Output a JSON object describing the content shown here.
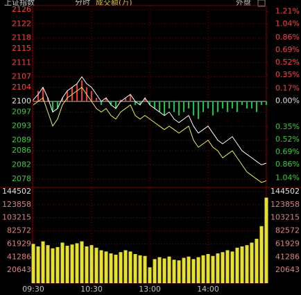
{
  "chart_data": {
    "type": "intraday",
    "header": [
      "上证指数",
      "分时",
      "成交额(万)"
    ],
    "header_right": "外盘",
    "x": [
      0,
      5,
      10,
      15,
      20,
      25,
      30,
      35,
      40,
      45,
      50,
      55,
      60,
      65,
      70,
      75,
      80,
      85,
      90,
      95,
      100,
      105,
      110,
      115,
      120,
      125,
      130,
      135,
      140,
      145,
      150,
      155,
      160,
      165,
      170,
      175,
      180,
      185,
      190,
      195,
      200,
      205,
      210,
      215,
      220,
      225,
      230,
      235,
      240
    ],
    "xlim": [
      0,
      240
    ],
    "xticks": [
      {
        "value": 0,
        "label": "09:30"
      },
      {
        "value": 60,
        "label": "10:30"
      },
      {
        "value": 120,
        "label": "13:00"
      },
      {
        "value": 180,
        "label": "14:00"
      }
    ],
    "ylim": [
      2076,
      2127.2
    ],
    "yticks": [
      2126,
      2122,
      2118,
      2115,
      2111,
      2107,
      2104,
      2100,
      2097,
      2093,
      2089,
      2086,
      2082,
      2078
    ],
    "y2lim": [
      -1.15,
      1.29
    ],
    "y2ticks": [
      {
        "value": 1.21,
        "label": "1.21%"
      },
      {
        "value": 1.04,
        "label": "1.04%"
      },
      {
        "value": 0.86,
        "label": "0.86%"
      },
      {
        "value": 0.69,
        "label": "0.69%"
      },
      {
        "value": 0.52,
        "label": "0.52%"
      },
      {
        "value": 0.35,
        "label": "0.35%"
      },
      {
        "value": 0.17,
        "label": "0.17%"
      },
      {
        "value": 0,
        "label": "0.00%"
      },
      {
        "value": -0.35,
        "label": "0.35%"
      },
      {
        "value": -0.52,
        "label": "0.52%"
      },
      {
        "value": -0.69,
        "label": "0.69%"
      },
      {
        "value": -0.86,
        "label": "0.86%"
      },
      {
        "value": -1.04,
        "label": "1.04%"
      }
    ],
    "base": 2100,
    "price": {
      "color": "#ffffff",
      "values": [
        2100.5,
        2102,
        2104,
        2101,
        2097,
        2098,
        2101,
        2103,
        2104,
        2105,
        2107,
        2105,
        2104,
        2102,
        2100,
        2101,
        2099,
        2098,
        2100,
        2101,
        2102,
        2100,
        2099,
        2101,
        2099,
        2098,
        2097,
        2096,
        2097,
        2095,
        2094,
        2095,
        2096,
        2093,
        2091,
        2092,
        2093,
        2091,
        2089,
        2088,
        2089,
        2090,
        2088,
        2086,
        2085,
        2084,
        2083,
        2082,
        2082.5
      ]
    },
    "average": {
      "color": "#f0f040",
      "values": [
        2099,
        2100,
        2101,
        2097,
        2093,
        2095,
        2099,
        2101,
        2102,
        2103,
        2104,
        2102,
        2100,
        2098,
        2097,
        2098,
        2096,
        2095,
        2097,
        2098,
        2099,
        2096,
        2095,
        2096,
        2095,
        2094,
        2093,
        2092,
        2093,
        2092,
        2091,
        2092,
        2093,
        2089,
        2087,
        2088,
        2089,
        2087,
        2086,
        2084,
        2085,
        2086,
        2084,
        2082,
        2080,
        2079,
        2078,
        2077,
        2077.5
      ]
    },
    "balance": {
      "up_color": "#ff3030",
      "down_color": "#00d040",
      "values": [
        0.5,
        3,
        4,
        1,
        -3,
        -2,
        1,
        3,
        4,
        5,
        6,
        4,
        3,
        1,
        -1,
        1,
        -1,
        -2,
        0.5,
        1,
        2,
        -1,
        -1,
        1,
        -1,
        -2,
        -3,
        -4,
        -2,
        -3,
        -4,
        -3,
        -2,
        -4,
        -5,
        -3,
        -2,
        -4,
        -3,
        -2,
        -3,
        -2,
        -3,
        -1,
        -2,
        -2,
        -3,
        -1,
        -1
      ]
    },
    "volume": {
      "color": "#e8e030",
      "values": [
        62000,
        58000,
        66000,
        60000,
        55000,
        57000,
        64000,
        59000,
        61000,
        63000,
        66000,
        58000,
        60000,
        56000,
        52000,
        50000,
        47000,
        45000,
        49000,
        52000,
        50000,
        46000,
        44000,
        43000,
        25000,
        38000,
        41000,
        39000,
        42000,
        37000,
        36000,
        40000,
        42000,
        38000,
        41000,
        44000,
        46000,
        43000,
        47000,
        49000,
        52000,
        50000,
        56000,
        58000,
        60000,
        64000,
        70000,
        90000,
        135000
      ]
    },
    "vlim": [
      0,
      150000
    ],
    "vticks": [
      144502,
      123858,
      103215,
      82572,
      61929,
      41286,
      20643
    ]
  }
}
